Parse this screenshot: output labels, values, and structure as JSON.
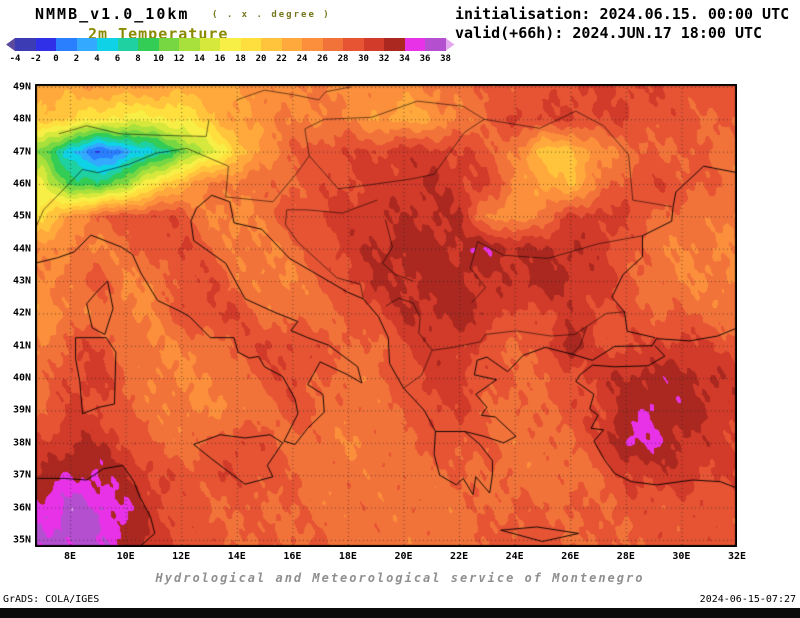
{
  "header": {
    "model_title": "NMMB_v1.0_10km",
    "resolution_note": "( . x . degree )",
    "field_title": "2m Temperature",
    "init_line": "initialisation: 2024.06.15. 00:00 UTC",
    "valid_line": "valid(+66h): 2024.JUN.17 18:00 UTC"
  },
  "colorbar": {
    "ticks": [
      -4,
      -2,
      0,
      2,
      4,
      6,
      8,
      10,
      12,
      14,
      16,
      18,
      20,
      22,
      24,
      26,
      28,
      30,
      32,
      34,
      36,
      38
    ],
    "segment_colors": [
      "#3c3cb4",
      "#3030e8",
      "#2a7fff",
      "#33aaff",
      "#0fd2e6",
      "#1fd0a0",
      "#33cc55",
      "#77d743",
      "#a8e03c",
      "#d6e83c",
      "#f7ef45",
      "#ffdf3e",
      "#ffc43c",
      "#ffa83c",
      "#fb8f3b",
      "#f2733a",
      "#e65434",
      "#d23a29",
      "#aa2820",
      "#e832e8",
      "#b44fd0"
    ],
    "arrow_left_color": "#5c4a9e",
    "arrow_right_color": "#e4a9ec"
  },
  "chart_data": {
    "type": "heatmap",
    "title": "2m Temperature",
    "x_tick_labels": [
      "8E",
      "10E",
      "12E",
      "14E",
      "16E",
      "18E",
      "20E",
      "22E",
      "24E",
      "26E",
      "28E",
      "30E",
      "32E"
    ],
    "y_tick_labels": [
      "49N",
      "48N",
      "47N",
      "46N",
      "45N",
      "44N",
      "43N",
      "42N",
      "41N",
      "40N",
      "39N",
      "38N",
      "37N",
      "36N",
      "35N"
    ],
    "lon_range": [
      6.74,
      32.0
    ],
    "lat_range": [
      34.78,
      49.09
    ],
    "x_lons": [
      7,
      8,
      9,
      10,
      11,
      12,
      13,
      14,
      15,
      16,
      17,
      18,
      19,
      20,
      21,
      22,
      23,
      24,
      25,
      26,
      27,
      28,
      29,
      30,
      31,
      32
    ],
    "y_lats": [
      49,
      48,
      47,
      46,
      45,
      44,
      43,
      42,
      41,
      40,
      39,
      38,
      37,
      36,
      35
    ],
    "values_degC": [
      [
        23,
        23,
        24,
        24,
        24,
        23,
        23,
        24,
        25,
        26,
        26,
        26,
        25,
        25,
        26,
        27,
        28,
        29,
        29,
        30,
        30,
        30,
        30,
        29,
        29,
        29
      ],
      [
        21,
        20,
        18,
        17,
        17,
        18,
        21,
        24,
        25,
        26,
        26,
        26,
        24,
        23,
        24,
        26,
        28,
        30,
        30,
        30,
        30,
        30,
        29,
        29,
        28,
        28
      ],
      [
        12,
        4,
        0,
        2,
        6,
        10,
        15,
        20,
        25,
        28,
        29,
        30,
        30,
        31,
        31,
        30,
        29,
        26,
        21,
        21,
        25,
        27,
        28,
        28,
        28,
        27
      ],
      [
        16,
        10,
        8,
        13,
        18,
        23,
        26,
        27,
        27,
        28,
        29,
        30,
        31,
        31,
        32,
        31,
        30,
        26,
        23,
        22,
        26,
        29,
        30,
        29,
        28,
        27
      ],
      [
        19,
        24,
        28,
        29,
        30,
        29,
        26,
        25,
        27,
        29,
        30,
        31,
        31,
        32,
        32,
        32,
        26,
        24,
        27,
        30,
        31,
        30,
        28,
        27,
        27,
        26
      ],
      [
        26,
        26,
        26,
        27,
        29,
        30,
        28,
        26,
        26,
        27,
        29,
        31,
        32,
        33,
        33,
        32,
        34.3,
        32,
        32,
        32,
        31,
        29,
        27,
        26,
        26,
        26
      ],
      [
        25,
        27,
        29,
        26,
        26,
        29,
        30,
        27,
        26,
        26,
        28,
        30,
        32,
        32,
        33,
        33,
        31,
        32,
        33,
        32,
        31,
        29,
        27,
        26,
        26,
        26
      ],
      [
        25,
        26,
        27,
        26,
        26,
        29,
        30,
        30,
        27,
        27,
        27,
        28,
        30,
        32,
        32,
        33,
        32,
        29,
        30,
        31,
        30,
        29,
        28,
        28,
        27,
        27
      ],
      [
        26,
        29,
        30,
        27,
        26,
        26,
        27,
        29,
        30,
        30,
        29,
        28,
        27,
        30,
        31,
        31,
        29,
        28,
        28,
        34.1,
        29,
        30,
        30,
        31,
        30,
        29
      ],
      [
        27,
        30,
        31,
        28,
        26,
        26,
        26,
        27,
        29,
        30,
        28,
        27,
        27,
        29,
        31,
        31,
        29,
        28,
        28,
        29,
        31,
        32,
        33,
        33,
        32,
        31
      ],
      [
        28,
        30,
        30,
        28,
        27,
        26,
        26,
        26,
        27,
        29,
        28,
        27,
        27,
        28,
        30,
        30,
        28,
        27,
        28,
        29,
        30,
        33,
        34,
        33,
        32,
        31
      ],
      [
        30,
        32,
        32,
        30,
        28,
        27,
        28,
        30,
        29,
        27,
        27,
        26,
        27,
        27,
        29,
        29,
        28,
        27,
        27,
        28,
        30,
        34.5,
        34,
        32,
        31,
        30
      ],
      [
        32,
        34,
        34,
        32,
        30,
        29,
        29,
        30,
        29,
        28,
        27,
        27,
        27,
        27,
        27,
        28,
        28,
        27,
        27,
        27,
        28,
        30,
        31,
        31,
        30,
        30
      ],
      [
        35,
        37,
        36,
        34,
        31,
        29,
        28,
        28,
        28,
        28,
        27,
        27,
        27,
        27,
        27,
        27,
        28,
        28,
        28,
        28,
        28,
        29,
        29,
        29,
        29,
        29
      ],
      [
        36,
        37,
        36,
        34,
        31,
        30,
        29,
        28,
        28,
        28,
        28,
        27,
        27,
        27,
        27,
        27,
        28,
        29,
        29,
        28,
        28,
        28,
        29,
        29,
        29,
        29
      ]
    ]
  },
  "footer": {
    "service_line": "Hydrological and Meteorological service of Montenegro",
    "grads_credit": "GrADS: COLA/IGES",
    "timestamp": "2024-06-15-07:27"
  }
}
